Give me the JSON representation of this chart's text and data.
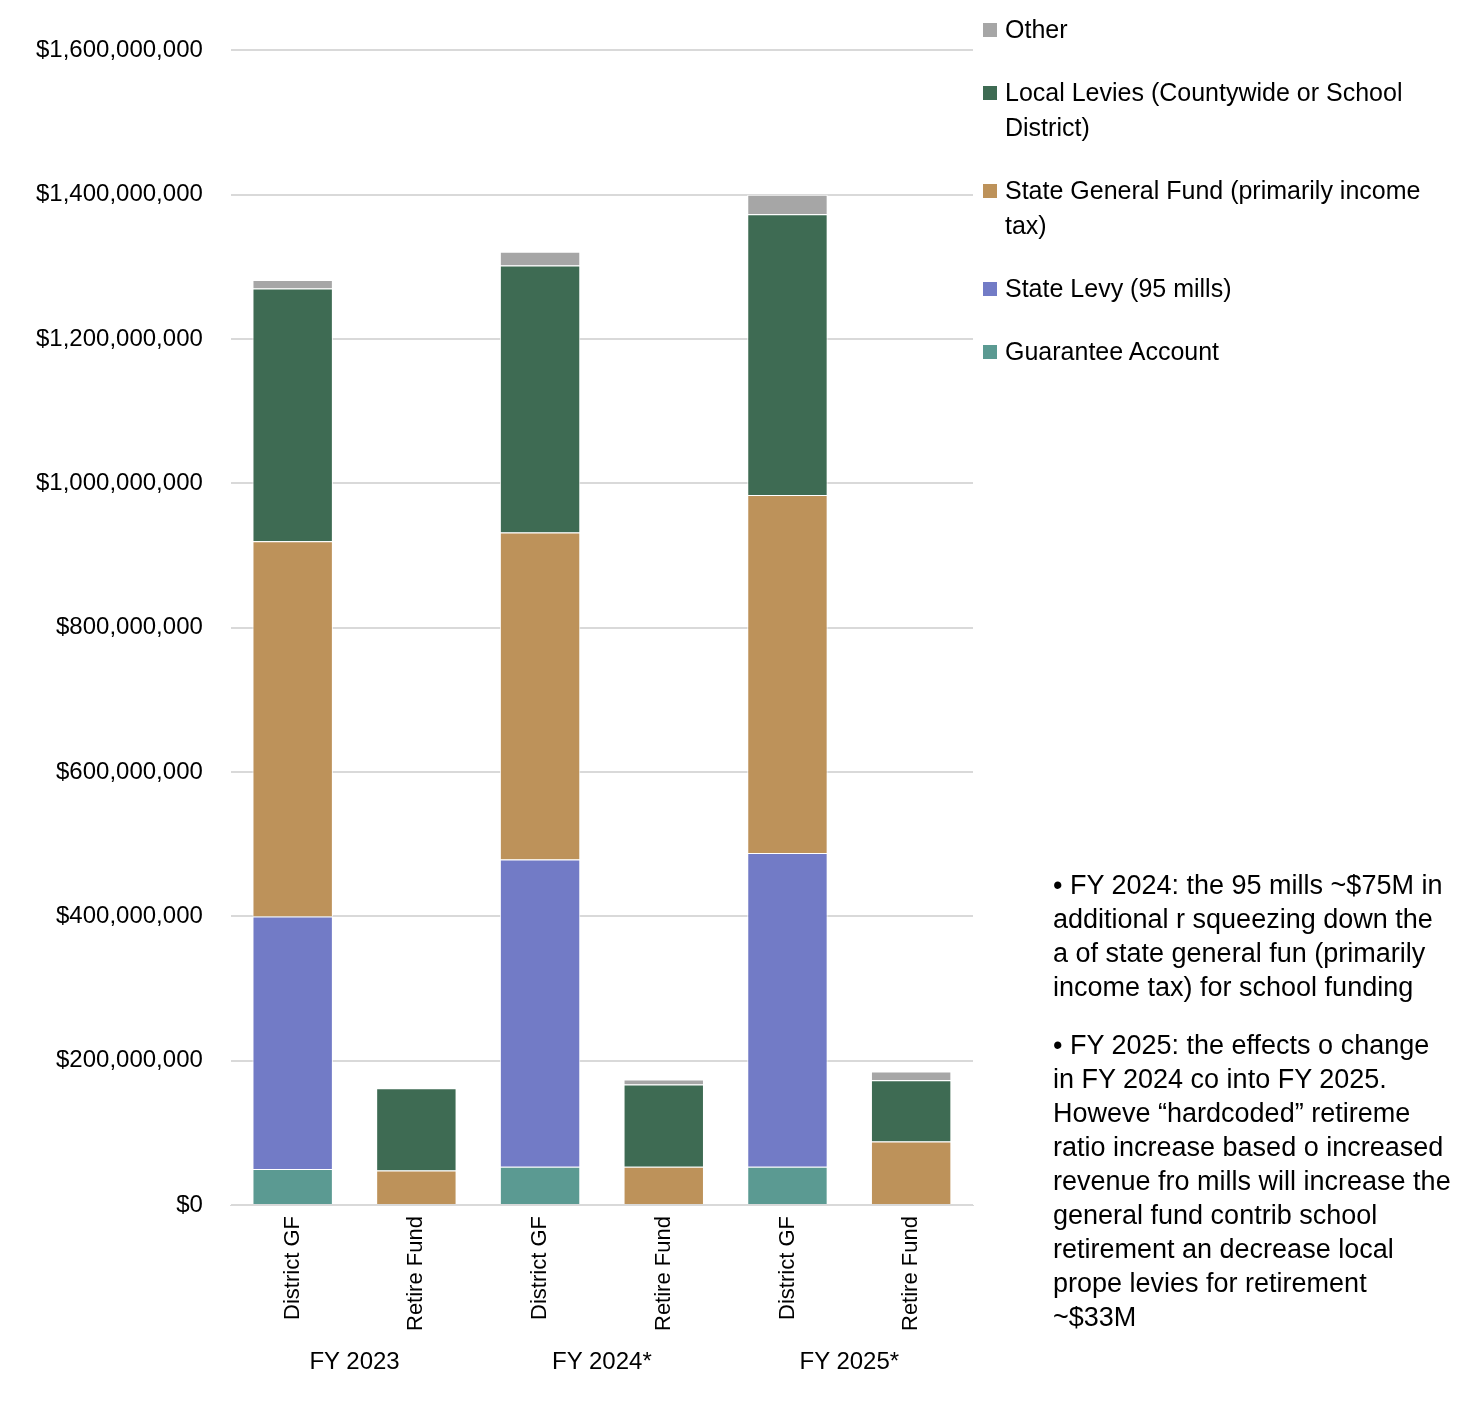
{
  "chart_data": {
    "type": "bar",
    "stacked": true,
    "categories": [
      "District GF",
      "Retire Fund",
      "District GF",
      "Retire Fund",
      "District GF",
      "Retire Fund"
    ],
    "series": [
      {
        "name": "Guarantee Account",
        "color": "#5b9a92",
        "values": [
          50000000,
          0,
          53000000,
          0,
          53000000,
          0
        ]
      },
      {
        "name": "State Levy (95 mills)",
        "color": "#727bc6",
        "values": [
          350000000,
          0,
          426000000,
          0,
          435000000,
          0
        ]
      },
      {
        "name": "State General Fund (primarily income tax)",
        "color": "#bd925a",
        "values": [
          520000000,
          48000000,
          453000000,
          53000000,
          496000000,
          88000000
        ]
      },
      {
        "name": "Local Levies (Countywide or School District)",
        "color": "#3e6b53",
        "values": [
          350000000,
          114000000,
          370000000,
          114000000,
          389000000,
          85000000
        ]
      },
      {
        "name": "Other",
        "color": "#a6a6a6",
        "values": [
          12000000,
          0,
          19000000,
          7000000,
          27000000,
          12000000
        ]
      }
    ],
    "ylim": [
      0,
      1600000000
    ],
    "yticks": [
      {
        "value": 0,
        "label": "$0"
      },
      {
        "value": 200000000,
        "label": "$200,000,000"
      },
      {
        "value": 400000000,
        "label": "$400,000,000"
      },
      {
        "value": 600000000,
        "label": "$600,000,000"
      },
      {
        "value": 800000000,
        "label": "$800,000,000"
      },
      {
        "value": 1000000000,
        "label": "$1,000,000,000"
      },
      {
        "value": 1200000000,
        "label": "$1,200,000,000"
      },
      {
        "value": 1400000000,
        "label": "$1,400,000,000"
      },
      {
        "value": 1600000000,
        "label": "$1,600,000,000"
      }
    ],
    "grid": "y",
    "legend": "top right",
    "annotations": [
      "FY 2023",
      "FY 2024*",
      "FY 2025*",
      "• FY 2024: the 95 mills ~$75M in additional r squeezing down the a of state general fun (primarily income tax) for school funding",
      "• FY 2025: the effects o change in FY 2024 co into FY 2025. Howeve “hardcoded” retireme ratio increase based o increased revenue fro mills will increase the general fund contrib school retirement an decrease local prope levies for retirement ~$33M"
    ]
  }
}
